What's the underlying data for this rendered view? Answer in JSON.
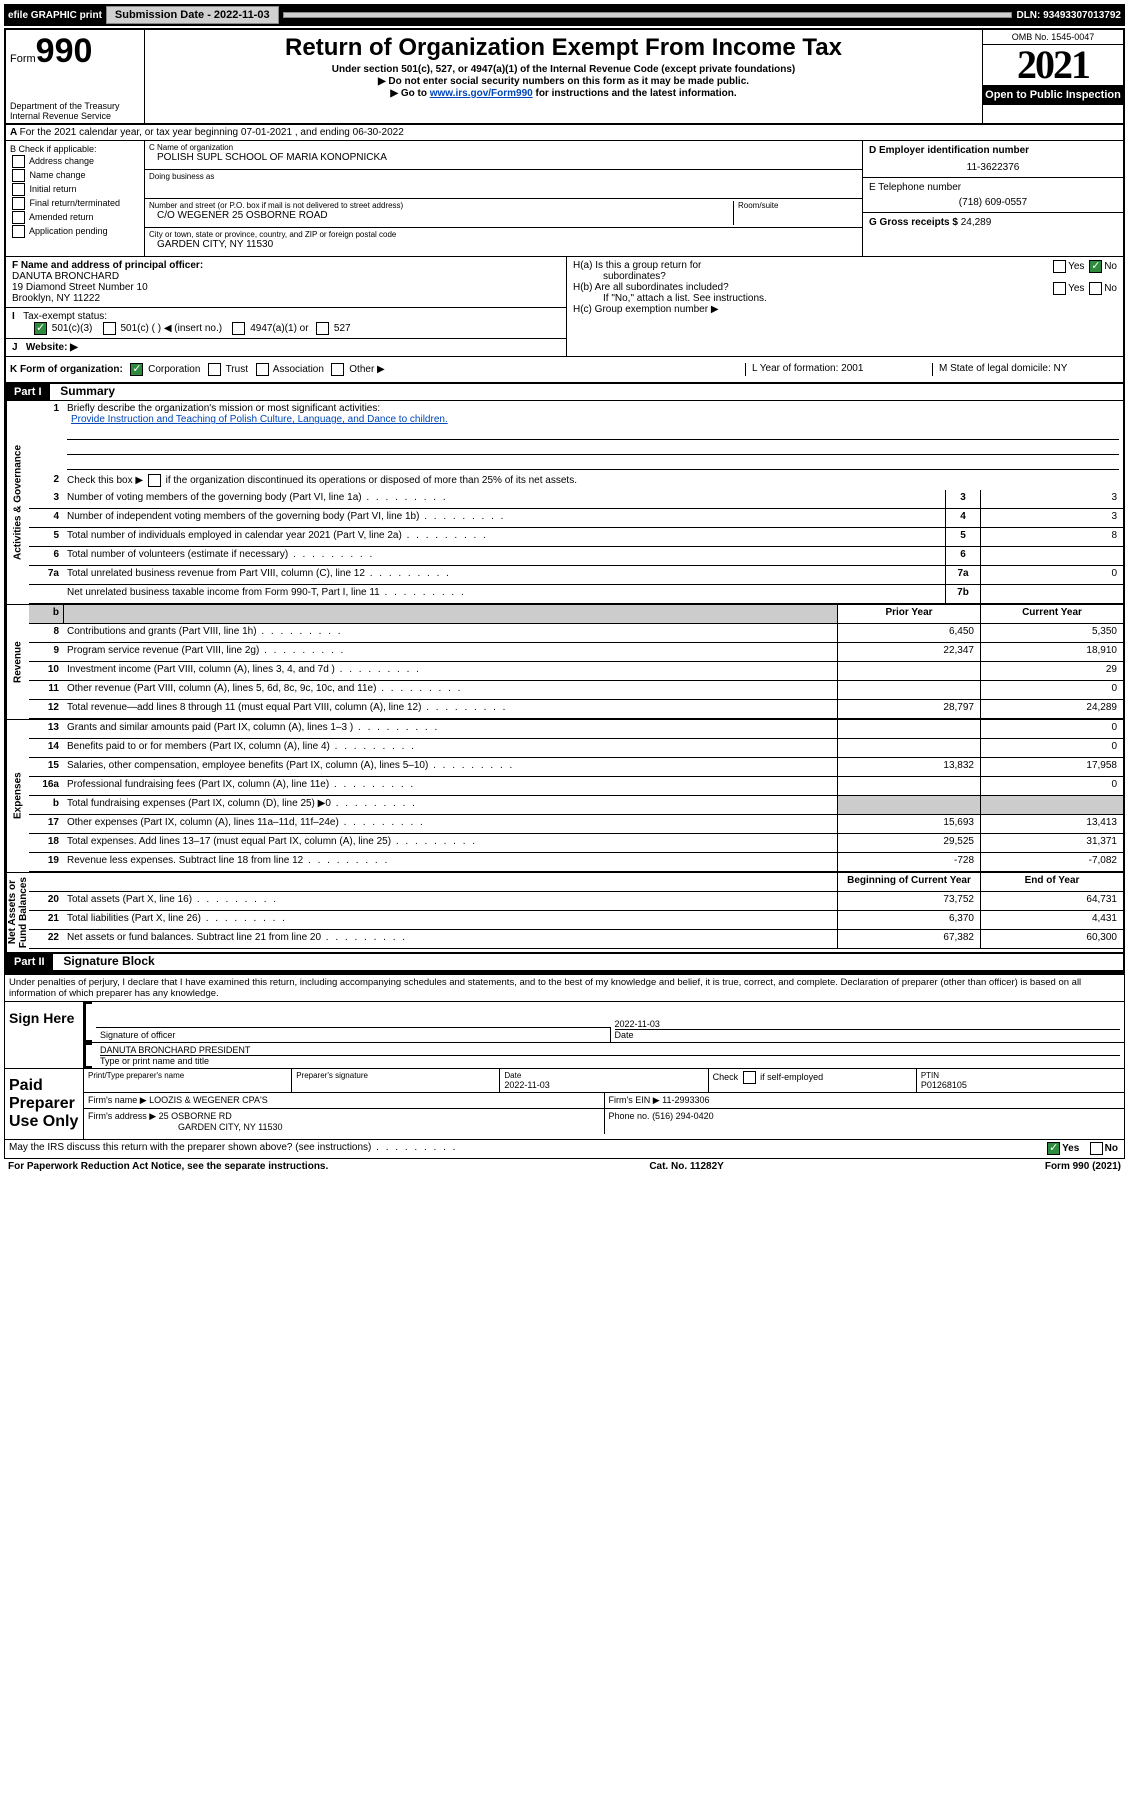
{
  "top_bar": {
    "efile": "efile GRAPHIC print",
    "submission_label": "Submission Date - 2022-11-03",
    "dln": "DLN: 93493307013792"
  },
  "header": {
    "form_word": "Form",
    "form_num": "990",
    "dept": "Department of the Treasury\nInternal Revenue Service",
    "title": "Return of Organization Exempt From Income Tax",
    "sub1": "Under section 501(c), 527, or 4947(a)(1) of the Internal Revenue Code (except private foundations)",
    "sub2": "▶ Do not enter social security numbers on this form as it may be made public.",
    "sub3_pre": "▶ Go to ",
    "sub3_link": "www.irs.gov/Form990",
    "sub3_post": " for instructions and the latest information.",
    "omb": "OMB No. 1545-0047",
    "year": "2021",
    "inspect": "Open to Public Inspection"
  },
  "row_a": "For the 2021 calendar year, or tax year beginning 07-01-2021  , and ending 06-30-2022",
  "col_b": {
    "title": "B Check if applicable:",
    "opts": [
      "Address change",
      "Name change",
      "Initial return",
      "Final return/terminated",
      "Amended return",
      "Application pending"
    ]
  },
  "col_c": {
    "name_label": "C Name of organization",
    "name": "POLISH SUPL SCHOOL OF MARIA KONOPNICKA",
    "dba_label": "Doing business as",
    "dba": "",
    "street_label": "Number and street (or P.O. box if mail is not delivered to street address)",
    "room_label": "Room/suite",
    "street": "C/O WEGENER 25 OSBORNE ROAD",
    "city_label": "City or town, state or province, country, and ZIP or foreign postal code",
    "city": "GARDEN CITY, NY  11530"
  },
  "col_d": {
    "ein_label": "D Employer identification number",
    "ein": "11-3622376",
    "phone_label": "E Telephone number",
    "phone": "(718) 609-0557",
    "gross_label": "G Gross receipts $",
    "gross": "24,289"
  },
  "section_f": {
    "label": "F  Name and address of principal officer:",
    "name": "DANUTA BRONCHARD",
    "addr1": "19 Diamond Street Number 10",
    "addr2": "Brooklyn, NY  11222"
  },
  "row_i": {
    "label": "Tax-exempt status:",
    "o1": "501(c)(3)",
    "o2": "501(c) (   ) ◀ (insert no.)",
    "o3": "4947(a)(1) or",
    "o4": "527"
  },
  "row_j": "Website: ▶",
  "col_h": {
    "a1": "H(a)  Is this a group return for",
    "a2": "subordinates?",
    "b1": "H(b)  Are all subordinates included?",
    "b2": "If \"No,\" attach a list. See instructions.",
    "c": "H(c)  Group exemption number ▶",
    "yes": "Yes",
    "no": "No"
  },
  "row_k": {
    "label": "K Form of organization:",
    "o1": "Corporation",
    "o2": "Trust",
    "o3": "Association",
    "o4": "Other ▶",
    "l": "L Year of formation: 2001",
    "m": "M State of legal domicile: NY"
  },
  "part1": {
    "header": "Part I",
    "title": "Summary",
    "line1_label": "Briefly describe the organization's mission or most significant activities:",
    "line1_text": "Provide Instruction and Teaching of Polish Culture, Language, and Dance to children.",
    "line2": "Check this box ▶       if the organization discontinued its operations or disposed of more than 25% of its net assets.",
    "vtabs": {
      "gov": "Activities & Governance",
      "rev": "Revenue",
      "exp": "Expenses",
      "net": "Net Assets or\nFund Balances"
    },
    "col_headers": {
      "prior": "Prior Year",
      "current": "Current Year",
      "begin": "Beginning of Current Year",
      "end": "End of Year"
    },
    "lines_single": [
      {
        "n": "3",
        "d": "Number of voting members of the governing body (Part VI, line 1a)",
        "box": "3",
        "v": "3"
      },
      {
        "n": "4",
        "d": "Number of independent voting members of the governing body (Part VI, line 1b)",
        "box": "4",
        "v": "3"
      },
      {
        "n": "5",
        "d": "Total number of individuals employed in calendar year 2021 (Part V, line 2a)",
        "box": "5",
        "v": "8"
      },
      {
        "n": "6",
        "d": "Total number of volunteers (estimate if necessary)",
        "box": "6",
        "v": ""
      },
      {
        "n": "7a",
        "d": "Total unrelated business revenue from Part VIII, column (C), line 12",
        "box": "7a",
        "v": "0"
      },
      {
        "n": "",
        "d": "Net unrelated business taxable income from Form 990-T, Part I, line 11",
        "box": "7b",
        "v": ""
      }
    ],
    "lines_rev": [
      {
        "n": "8",
        "d": "Contributions and grants (Part VIII, line 1h)",
        "p": "6,450",
        "c": "5,350"
      },
      {
        "n": "9",
        "d": "Program service revenue (Part VIII, line 2g)",
        "p": "22,347",
        "c": "18,910"
      },
      {
        "n": "10",
        "d": "Investment income (Part VIII, column (A), lines 3, 4, and 7d )",
        "p": "",
        "c": "29"
      },
      {
        "n": "11",
        "d": "Other revenue (Part VIII, column (A), lines 5, 6d, 8c, 9c, 10c, and 11e)",
        "p": "",
        "c": "0"
      },
      {
        "n": "12",
        "d": "Total revenue—add lines 8 through 11 (must equal Part VIII, column (A), line 12)",
        "p": "28,797",
        "c": "24,289"
      }
    ],
    "lines_exp": [
      {
        "n": "13",
        "d": "Grants and similar amounts paid (Part IX, column (A), lines 1–3 )",
        "p": "",
        "c": "0"
      },
      {
        "n": "14",
        "d": "Benefits paid to or for members (Part IX, column (A), line 4)",
        "p": "",
        "c": "0"
      },
      {
        "n": "15",
        "d": "Salaries, other compensation, employee benefits (Part IX, column (A), lines 5–10)",
        "p": "13,832",
        "c": "17,958"
      },
      {
        "n": "16a",
        "d": "Professional fundraising fees (Part IX, column (A), line 11e)",
        "p": "",
        "c": "0"
      },
      {
        "n": "b",
        "d": "Total fundraising expenses (Part IX, column (D), line 25) ▶0",
        "p": "GRAY",
        "c": "GRAY"
      },
      {
        "n": "17",
        "d": "Other expenses (Part IX, column (A), lines 11a–11d, 11f–24e)",
        "p": "15,693",
        "c": "13,413"
      },
      {
        "n": "18",
        "d": "Total expenses. Add lines 13–17 (must equal Part IX, column (A), line 25)",
        "p": "29,525",
        "c": "31,371"
      },
      {
        "n": "19",
        "d": "Revenue less expenses. Subtract line 18 from line 12",
        "p": "-728",
        "c": "-7,082"
      }
    ],
    "lines_net": [
      {
        "n": "20",
        "d": "Total assets (Part X, line 16)",
        "p": "73,752",
        "c": "64,731"
      },
      {
        "n": "21",
        "d": "Total liabilities (Part X, line 26)",
        "p": "6,370",
        "c": "4,431"
      },
      {
        "n": "22",
        "d": "Net assets or fund balances. Subtract line 21 from line 20",
        "p": "67,382",
        "c": "60,300"
      }
    ]
  },
  "part2": {
    "header": "Part II",
    "title": "Signature Block",
    "penalties": "Under penalties of perjury, I declare that I have examined this return, including accompanying schedules and statements, and to the best of my knowledge and belief, it is true, correct, and complete. Declaration of preparer (other than officer) is based on all information of which preparer has any knowledge."
  },
  "sign": {
    "label": "Sign Here",
    "sig_label": "Signature of officer",
    "date_label": "Date",
    "date": "2022-11-03",
    "name": "DANUTA BRONCHARD PRESIDENT",
    "name_label": "Type or print name and title"
  },
  "preparer": {
    "label": "Paid Preparer Use Only",
    "h1": "Print/Type preparer's name",
    "h2": "Preparer's signature",
    "h3": "Date",
    "date": "2022-11-03",
    "h4_a": "Check",
    "h4_b": "if self-employed",
    "h5": "PTIN",
    "ptin": "P01268105",
    "firm_name_label": "Firm's name    ▶",
    "firm_name": "LOOZIS & WEGENER CPA'S",
    "firm_ein_label": "Firm's EIN ▶",
    "firm_ein": "11-2993306",
    "firm_addr_label": "Firm's address ▶",
    "firm_addr1": "25 OSBORNE RD",
    "firm_addr2": "GARDEN CITY, NY  11530",
    "phone_label": "Phone no.",
    "phone": "(516) 294-0420"
  },
  "discuss": {
    "text": "May the IRS discuss this return with the preparer shown above? (see instructions)",
    "yes": "Yes",
    "no": "No"
  },
  "footer": {
    "left": "For Paperwork Reduction Act Notice, see the separate instructions.",
    "mid": "Cat. No. 11282Y",
    "right": "Form 990 (2021)"
  }
}
